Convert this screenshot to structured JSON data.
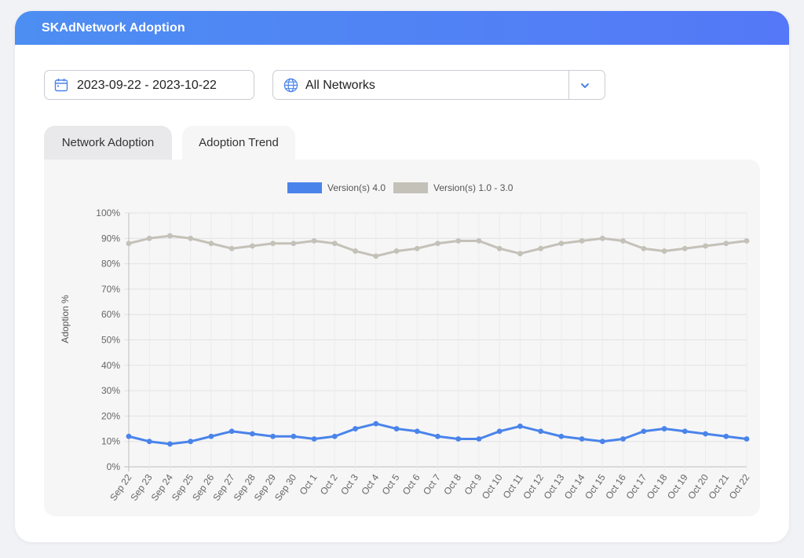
{
  "header": {
    "title": "SKAdNetwork Adoption"
  },
  "filters": {
    "date_range": "2023-09-22 - 2023-10-22",
    "network": "All Networks"
  },
  "tabs": [
    {
      "label": "Network Adoption",
      "active": false
    },
    {
      "label": "Adoption Trend",
      "active": true
    }
  ],
  "icons": {
    "date": "calendar-icon",
    "network": "globe-icon",
    "dropdown": "chevron-down-icon"
  },
  "colors": {
    "header_start": "#4d8ef2",
    "header_end": "#5478f7",
    "series_v4": "#4a84ea",
    "series_v1_3": "#c4c1b8"
  },
  "chart_data": {
    "type": "line",
    "title": "",
    "xlabel": "",
    "ylabel": "Adoption %",
    "ylim": [
      0,
      100
    ],
    "yticks": [
      "0%",
      "10%",
      "20%",
      "30%",
      "40%",
      "50%",
      "60%",
      "70%",
      "80%",
      "90%",
      "100%"
    ],
    "grid": true,
    "legend": "top-center",
    "categories": [
      "Sep 22",
      "Sep 23",
      "Sep 24",
      "Sep 25",
      "Sep 26",
      "Sep 27",
      "Sep 28",
      "Sep 29",
      "Sep 30",
      "Oct 1",
      "Oct 2",
      "Oct 3",
      "Oct 4",
      "Oct 5",
      "Oct 6",
      "Oct 7",
      "Oct 8",
      "Oct 9",
      "Oct 10",
      "Oct 11",
      "Oct 12",
      "Oct 13",
      "Oct 14",
      "Oct 15",
      "Oct 16",
      "Oct 17",
      "Oct 18",
      "Oct 19",
      "Oct 20",
      "Oct 21",
      "Oct 22"
    ],
    "series": [
      {
        "name": "Version(s) 4.0",
        "color": "#4a84ea",
        "values": [
          12,
          10,
          9,
          10,
          12,
          14,
          13,
          12,
          12,
          11,
          12,
          15,
          17,
          15,
          14,
          12,
          11,
          11,
          14,
          16,
          14,
          12,
          11,
          10,
          11,
          14,
          15,
          14,
          13,
          12,
          11
        ]
      },
      {
        "name": "Version(s) 1.0 - 3.0",
        "color": "#c4c1b8",
        "values": [
          88,
          90,
          91,
          90,
          88,
          86,
          87,
          88,
          88,
          89,
          88,
          85,
          83,
          85,
          86,
          88,
          89,
          89,
          86,
          84,
          86,
          88,
          89,
          90,
          89,
          86,
          85,
          86,
          87,
          88,
          89
        ]
      }
    ]
  }
}
